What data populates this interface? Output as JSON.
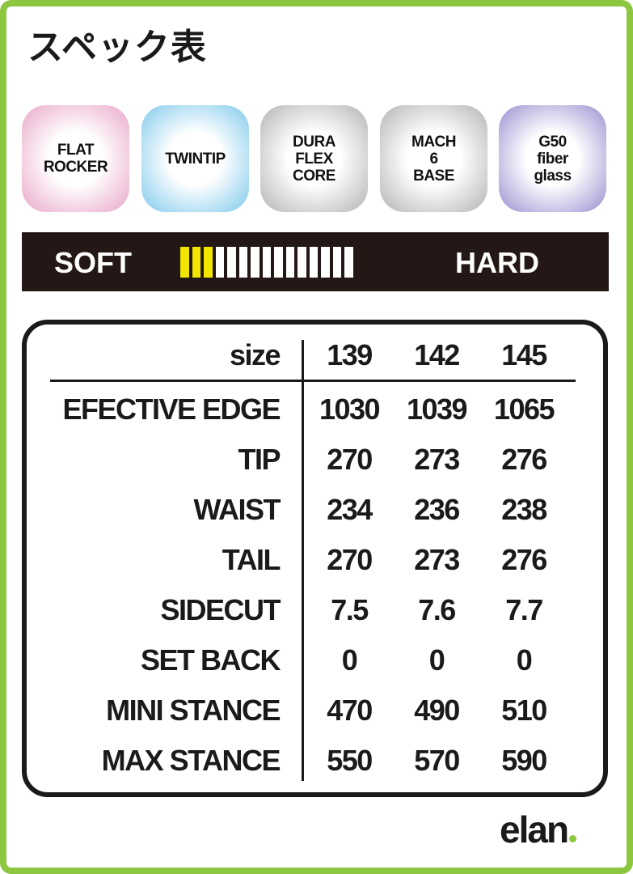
{
  "title": "スペック表",
  "badges": [
    {
      "label": "FLAT\nROCKER",
      "color": "#e9a6c8"
    },
    {
      "label": "TWINTIP",
      "color": "#7fc9ec"
    },
    {
      "label": "DURA\nFLEX\nCORE",
      "color": "#b3b3b3"
    },
    {
      "label": "MACH\n6\nBASE",
      "color": "#b3b3b3"
    },
    {
      "label": "G50\nfiber\nglass",
      "color": "#9a8fd0"
    }
  ],
  "flex": {
    "soft_label": "SOFT",
    "hard_label": "HARD",
    "level": 3,
    "max": 15,
    "active_color": "#f2e600"
  },
  "table": {
    "header": {
      "label": "size",
      "values": [
        "139",
        "142",
        "145"
      ]
    },
    "rows": [
      {
        "label": "EFECTIVE EDGE",
        "values": [
          "1030",
          "1039",
          "1065"
        ]
      },
      {
        "label": "TIP",
        "values": [
          "270",
          "273",
          "276"
        ]
      },
      {
        "label": "WAIST",
        "values": [
          "234",
          "236",
          "238"
        ]
      },
      {
        "label": "TAIL",
        "values": [
          "270",
          "273",
          "276"
        ]
      },
      {
        "label": "SIDECUT",
        "values": [
          "7.5",
          "7.6",
          "7.7"
        ]
      },
      {
        "label": "SET BACK",
        "values": [
          "0",
          "0",
          "0"
        ]
      },
      {
        "label": "MINI STANCE",
        "values": [
          "470",
          "490",
          "510"
        ]
      },
      {
        "label": "MAX STANCE",
        "values": [
          "550",
          "570",
          "590"
        ]
      }
    ]
  },
  "logo": "elan",
  "accent_color": "#8dc63f"
}
